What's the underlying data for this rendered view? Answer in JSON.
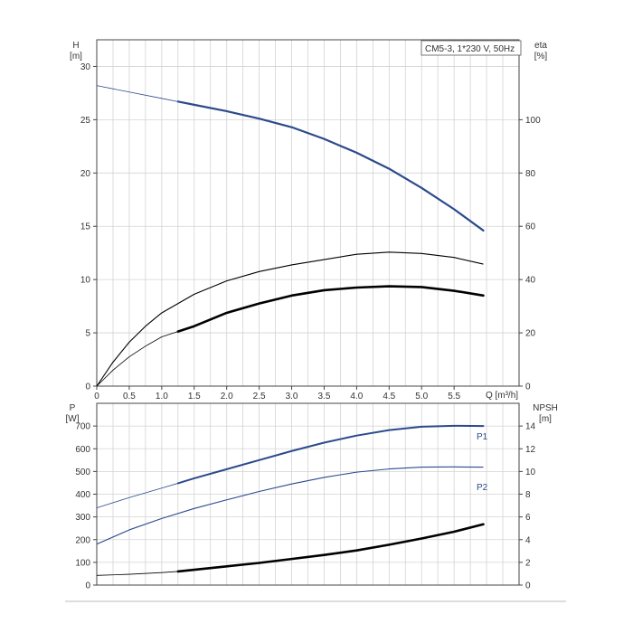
{
  "chart_data": [
    {
      "type": "line",
      "legend": "CM5-3, 1*230 V, 50Hz",
      "legend_position": "top-right",
      "grid": true,
      "xlabel": "Q [m³/h]",
      "xlim": [
        0,
        6.5
      ],
      "x_ticks": [
        "0",
        "0.5",
        "1.0",
        "1.5",
        "2.0",
        "2.5",
        "3.0",
        "3.5",
        "4.0",
        "4.5",
        "5.0",
        "5.5"
      ],
      "y_left": {
        "label_top": "H",
        "label_unit": "[m]",
        "ylim": [
          0,
          32.5
        ],
        "ticks": [
          "0",
          "5",
          "10",
          "15",
          "20",
          "25",
          "30"
        ]
      },
      "y_right": {
        "label_top": "eta",
        "label_unit": "[%]",
        "ylim": [
          0,
          130
        ],
        "ticks": [
          "0",
          "20",
          "40",
          "60",
          "80",
          "100"
        ]
      },
      "series": [
        {
          "axis": "left",
          "color": "#2c4a8c",
          "style": "head",
          "x": [
            0,
            0.5,
            1.0,
            1.25,
            1.5,
            2.0,
            2.5,
            3.0,
            3.5,
            4.0,
            4.5,
            5.0,
            5.5,
            5.95
          ],
          "y": [
            28.2,
            27.6,
            27.0,
            26.7,
            26.4,
            25.8,
            25.1,
            24.3,
            23.2,
            21.9,
            20.4,
            18.6,
            16.6,
            14.6
          ],
          "operating_from": 1.25
        },
        {
          "axis": "right",
          "color": "#000000",
          "style": "thin",
          "x": [
            0,
            0.25,
            0.5,
            0.75,
            1.0,
            1.5,
            2.0,
            2.5,
            3.0,
            3.5,
            4.0,
            4.5,
            5.0,
            5.5,
            5.95
          ],
          "y": [
            0,
            9,
            16.5,
            22.5,
            27.5,
            34.5,
            39.5,
            43,
            45.5,
            47.5,
            49.5,
            50.3,
            49.8,
            48.3,
            45.8
          ]
        },
        {
          "axis": "right",
          "color": "#000000",
          "style": "thick",
          "x": [
            0,
            0.25,
            0.5,
            0.75,
            1.0,
            1.25,
            1.5,
            2.0,
            2.5,
            3.0,
            3.5,
            4.0,
            4.5,
            5.0,
            5.5,
            5.95
          ],
          "y": [
            0,
            6,
            11,
            15,
            18.5,
            20.5,
            22.5,
            27.5,
            31,
            34,
            36,
            37,
            37.5,
            37.2,
            35.8,
            34
          ],
          "operating_from": 1.25
        }
      ]
    },
    {
      "type": "line",
      "grid": true,
      "xlim": [
        0,
        6.5
      ],
      "y_left": {
        "label_top": "P",
        "label_unit": "[W]",
        "ylim": [
          0,
          800
        ],
        "ticks": [
          "0",
          "100",
          "200",
          "300",
          "400",
          "500",
          "600",
          "700"
        ]
      },
      "y_right": {
        "label_top": "NPSH",
        "label_unit": "[m]",
        "ylim": [
          0,
          16
        ],
        "ticks": [
          "0",
          "2",
          "4",
          "6",
          "8",
          "10",
          "12",
          "14"
        ]
      },
      "series": [
        {
          "name": "P1",
          "axis": "left",
          "color": "#2c4a8c",
          "style": "power",
          "x": [
            0,
            0.5,
            1.0,
            1.25,
            1.5,
            2.0,
            2.5,
            3.0,
            3.5,
            4.0,
            4.5,
            5.0,
            5.5,
            5.95
          ],
          "y": [
            340,
            385,
            427,
            448,
            470,
            510,
            550,
            590,
            627,
            658,
            682,
            697,
            701,
            700
          ],
          "operating_from": 1.25
        },
        {
          "name": "P2",
          "axis": "left",
          "color": "#2c4a8c",
          "style": "thin",
          "x": [
            0,
            0.5,
            1.0,
            1.5,
            2.0,
            2.5,
            3.0,
            3.5,
            4.0,
            4.5,
            5.0,
            5.5,
            5.95
          ],
          "y": [
            180,
            243,
            293,
            337,
            375,
            412,
            445,
            474,
            497,
            511,
            519,
            520,
            519
          ]
        },
        {
          "axis": "right",
          "color": "#000000",
          "style": "thick",
          "x": [
            0,
            0.5,
            1.0,
            1.25,
            1.5,
            2.0,
            2.5,
            3.0,
            3.5,
            4.0,
            4.5,
            5.0,
            5.5,
            5.95
          ],
          "y": [
            0.85,
            0.95,
            1.1,
            1.2,
            1.35,
            1.65,
            1.95,
            2.3,
            2.65,
            3.05,
            3.55,
            4.1,
            4.7,
            5.35
          ],
          "operating_from": 1.25
        }
      ]
    }
  ]
}
